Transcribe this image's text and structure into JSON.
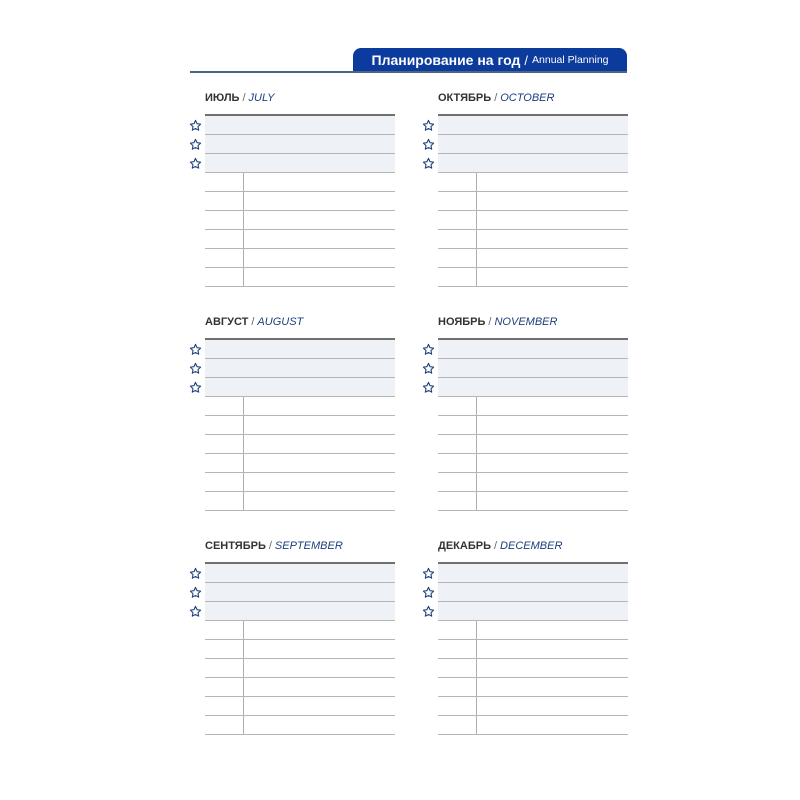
{
  "header": {
    "title_ru": "Планирование на год",
    "separator": "/",
    "title_en": "Annual Planning"
  },
  "colors": {
    "accent": "#0b3b9c",
    "rule": "#4d6482",
    "shaded_row": "#eef1f6",
    "month_en": "#1d3f7c"
  },
  "months": [
    {
      "ru": "ИЮЛЬ",
      "en": "JULY"
    },
    {
      "ru": "ОКТЯБРЬ",
      "en": "OCTOBER"
    },
    {
      "ru": "АВГУСТ",
      "en": "AUGUST"
    },
    {
      "ru": "НОЯБРЬ",
      "en": "NOVEMBER"
    },
    {
      "ru": "СЕНТЯБРЬ",
      "en": "SEPTEMBER"
    },
    {
      "ru": "ДЕКАБРЬ",
      "en": "DECEMBER"
    }
  ],
  "month_separator": "/",
  "rows_per_month": 9,
  "starred_rows": 3,
  "row_icon": "star-outline-icon"
}
